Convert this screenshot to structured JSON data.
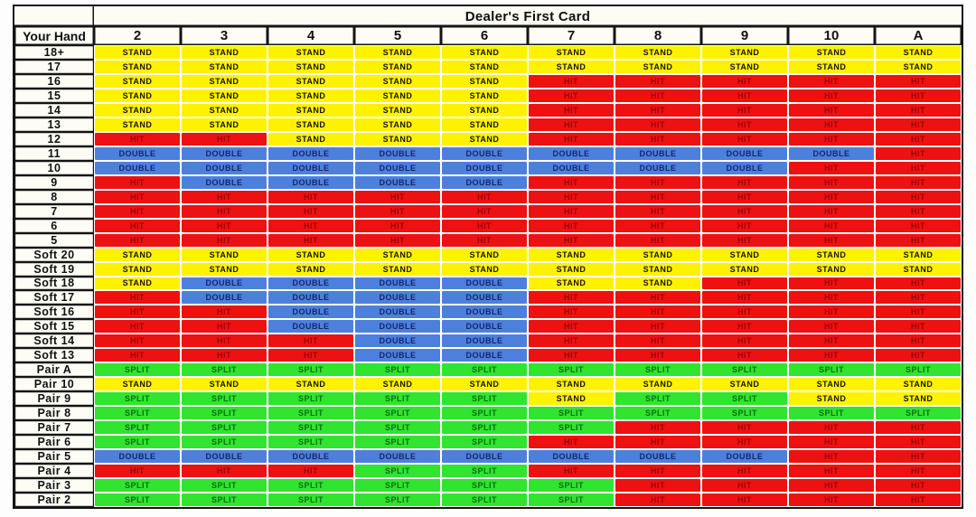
{
  "chart_data": {
    "type": "table",
    "title": "Dealer's First Card",
    "corner_label": "Your Hand",
    "columns": [
      "2",
      "3",
      "4",
      "5",
      "6",
      "7",
      "8",
      "9",
      "10",
      "A"
    ],
    "rows": [
      {
        "label": "18+",
        "cells": [
          "STAND",
          "STAND",
          "STAND",
          "STAND",
          "STAND",
          "STAND",
          "STAND",
          "STAND",
          "STAND",
          "STAND"
        ]
      },
      {
        "label": "17",
        "cells": [
          "STAND",
          "STAND",
          "STAND",
          "STAND",
          "STAND",
          "STAND",
          "STAND",
          "STAND",
          "STAND",
          "STAND"
        ]
      },
      {
        "label": "16",
        "cells": [
          "STAND",
          "STAND",
          "STAND",
          "STAND",
          "STAND",
          "HIT",
          "HIT",
          "HIT",
          "HIT",
          "HIT"
        ]
      },
      {
        "label": "15",
        "cells": [
          "STAND",
          "STAND",
          "STAND",
          "STAND",
          "STAND",
          "HIT",
          "HIT",
          "HIT",
          "HIT",
          "HIT"
        ]
      },
      {
        "label": "14",
        "cells": [
          "STAND",
          "STAND",
          "STAND",
          "STAND",
          "STAND",
          "HIT",
          "HIT",
          "HIT",
          "HIT",
          "HIT"
        ]
      },
      {
        "label": "13",
        "cells": [
          "STAND",
          "STAND",
          "STAND",
          "STAND",
          "STAND",
          "HIT",
          "HIT",
          "HIT",
          "HIT",
          "HIT"
        ]
      },
      {
        "label": "12",
        "cells": [
          "HIT",
          "HIT",
          "STAND",
          "STAND",
          "STAND",
          "HIT",
          "HIT",
          "HIT",
          "HIT",
          "HIT"
        ]
      },
      {
        "label": "11",
        "cells": [
          "DOUBLE",
          "DOUBLE",
          "DOUBLE",
          "DOUBLE",
          "DOUBLE",
          "DOUBLE",
          "DOUBLE",
          "DOUBLE",
          "DOUBLE",
          "HIT"
        ]
      },
      {
        "label": "10",
        "cells": [
          "DOUBLE",
          "DOUBLE",
          "DOUBLE",
          "DOUBLE",
          "DOUBLE",
          "DOUBLE",
          "DOUBLE",
          "DOUBLE",
          "HIT",
          "HIT"
        ]
      },
      {
        "label": "9",
        "cells": [
          "HIT",
          "DOUBLE",
          "DOUBLE",
          "DOUBLE",
          "DOUBLE",
          "HIT",
          "HIT",
          "HIT",
          "HIT",
          "HIT"
        ]
      },
      {
        "label": "8",
        "cells": [
          "HIT",
          "HIT",
          "HIT",
          "HIT",
          "HIT",
          "HIT",
          "HIT",
          "HIT",
          "HIT",
          "HIT"
        ]
      },
      {
        "label": "7",
        "cells": [
          "HIT",
          "HIT",
          "HIT",
          "HIT",
          "HIT",
          "HIT",
          "HIT",
          "HIT",
          "HIT",
          "HIT"
        ]
      },
      {
        "label": "6",
        "cells": [
          "HIT",
          "HIT",
          "HIT",
          "HIT",
          "HIT",
          "HIT",
          "HIT",
          "HIT",
          "HIT",
          "HIT"
        ]
      },
      {
        "label": "5",
        "cells": [
          "HIT",
          "HIT",
          "HIT",
          "HIT",
          "HIT",
          "HIT",
          "HIT",
          "HIT",
          "HIT",
          "HIT"
        ]
      },
      {
        "label": "Soft 20",
        "cells": [
          "STAND",
          "STAND",
          "STAND",
          "STAND",
          "STAND",
          "STAND",
          "STAND",
          "STAND",
          "STAND",
          "STAND"
        ]
      },
      {
        "label": "Soft 19",
        "cells": [
          "STAND",
          "STAND",
          "STAND",
          "STAND",
          "STAND",
          "STAND",
          "STAND",
          "STAND",
          "STAND",
          "STAND"
        ]
      },
      {
        "label": "Soft 18",
        "cells": [
          "STAND",
          "DOUBLE",
          "DOUBLE",
          "DOUBLE",
          "DOUBLE",
          "STAND",
          "STAND",
          "HIT",
          "HIT",
          "HIT"
        ]
      },
      {
        "label": "Soft 17",
        "cells": [
          "HIT",
          "DOUBLE",
          "DOUBLE",
          "DOUBLE",
          "DOUBLE",
          "HIT",
          "HIT",
          "HIT",
          "HIT",
          "HIT"
        ]
      },
      {
        "label": "Soft 16",
        "cells": [
          "HIT",
          "HIT",
          "DOUBLE",
          "DOUBLE",
          "DOUBLE",
          "HIT",
          "HIT",
          "HIT",
          "HIT",
          "HIT"
        ]
      },
      {
        "label": "Soft 15",
        "cells": [
          "HIT",
          "HIT",
          "DOUBLE",
          "DOUBLE",
          "DOUBLE",
          "HIT",
          "HIT",
          "HIT",
          "HIT",
          "HIT"
        ]
      },
      {
        "label": "Soft 14",
        "cells": [
          "HIT",
          "HIT",
          "HIT",
          "DOUBLE",
          "DOUBLE",
          "HIT",
          "HIT",
          "HIT",
          "HIT",
          "HIT"
        ]
      },
      {
        "label": "Soft 13",
        "cells": [
          "HIT",
          "HIT",
          "HIT",
          "DOUBLE",
          "DOUBLE",
          "HIT",
          "HIT",
          "HIT",
          "HIT",
          "HIT"
        ]
      },
      {
        "label": "Pair A",
        "cells": [
          "SPLIT",
          "SPLIT",
          "SPLIT",
          "SPLIT",
          "SPLIT",
          "SPLIT",
          "SPLIT",
          "SPLIT",
          "SPLIT",
          "SPLIT"
        ]
      },
      {
        "label": "Pair 10",
        "cells": [
          "STAND",
          "STAND",
          "STAND",
          "STAND",
          "STAND",
          "STAND",
          "STAND",
          "STAND",
          "STAND",
          "STAND"
        ]
      },
      {
        "label": "Pair 9",
        "cells": [
          "SPLIT",
          "SPLIT",
          "SPLIT",
          "SPLIT",
          "SPLIT",
          "STAND",
          "SPLIT",
          "SPLIT",
          "STAND",
          "STAND"
        ]
      },
      {
        "label": "Pair 8",
        "cells": [
          "SPLIT",
          "SPLIT",
          "SPLIT",
          "SPLIT",
          "SPLIT",
          "SPLIT",
          "SPLIT",
          "SPLIT",
          "SPLIT",
          "SPLIT"
        ]
      },
      {
        "label": "Pair 7",
        "cells": [
          "SPLIT",
          "SPLIT",
          "SPLIT",
          "SPLIT",
          "SPLIT",
          "SPLIT",
          "HIT",
          "HIT",
          "HIT",
          "HIT"
        ]
      },
      {
        "label": "Pair 6",
        "cells": [
          "SPLIT",
          "SPLIT",
          "SPLIT",
          "SPLIT",
          "SPLIT",
          "HIT",
          "HIT",
          "HIT",
          "HIT",
          "HIT"
        ]
      },
      {
        "label": "Pair 5",
        "cells": [
          "DOUBLE",
          "DOUBLE",
          "DOUBLE",
          "DOUBLE",
          "DOUBLE",
          "DOUBLE",
          "DOUBLE",
          "DOUBLE",
          "HIT",
          "HIT"
        ]
      },
      {
        "label": "Pair 4",
        "cells": [
          "HIT",
          "HIT",
          "HIT",
          "SPLIT",
          "SPLIT",
          "HIT",
          "HIT",
          "HIT",
          "HIT",
          "HIT"
        ]
      },
      {
        "label": "Pair 3",
        "cells": [
          "SPLIT",
          "SPLIT",
          "SPLIT",
          "SPLIT",
          "SPLIT",
          "SPLIT",
          "HIT",
          "HIT",
          "HIT",
          "HIT"
        ]
      },
      {
        "label": "Pair 2",
        "cells": [
          "SPLIT",
          "SPLIT",
          "SPLIT",
          "SPLIT",
          "SPLIT",
          "SPLIT",
          "HIT",
          "HIT",
          "HIT",
          "HIT"
        ]
      }
    ],
    "actions": {
      "STAND": {
        "bg": "#fff200",
        "fg": "#151500"
      },
      "HIT": {
        "bg": "#ee1111",
        "fg": "#9b0404"
      },
      "DOUBLE": {
        "bg": "#4d80dc",
        "fg": "#14266e"
      },
      "SPLIT": {
        "bg": "#30e430",
        "fg": "#0e6e0e"
      }
    }
  }
}
